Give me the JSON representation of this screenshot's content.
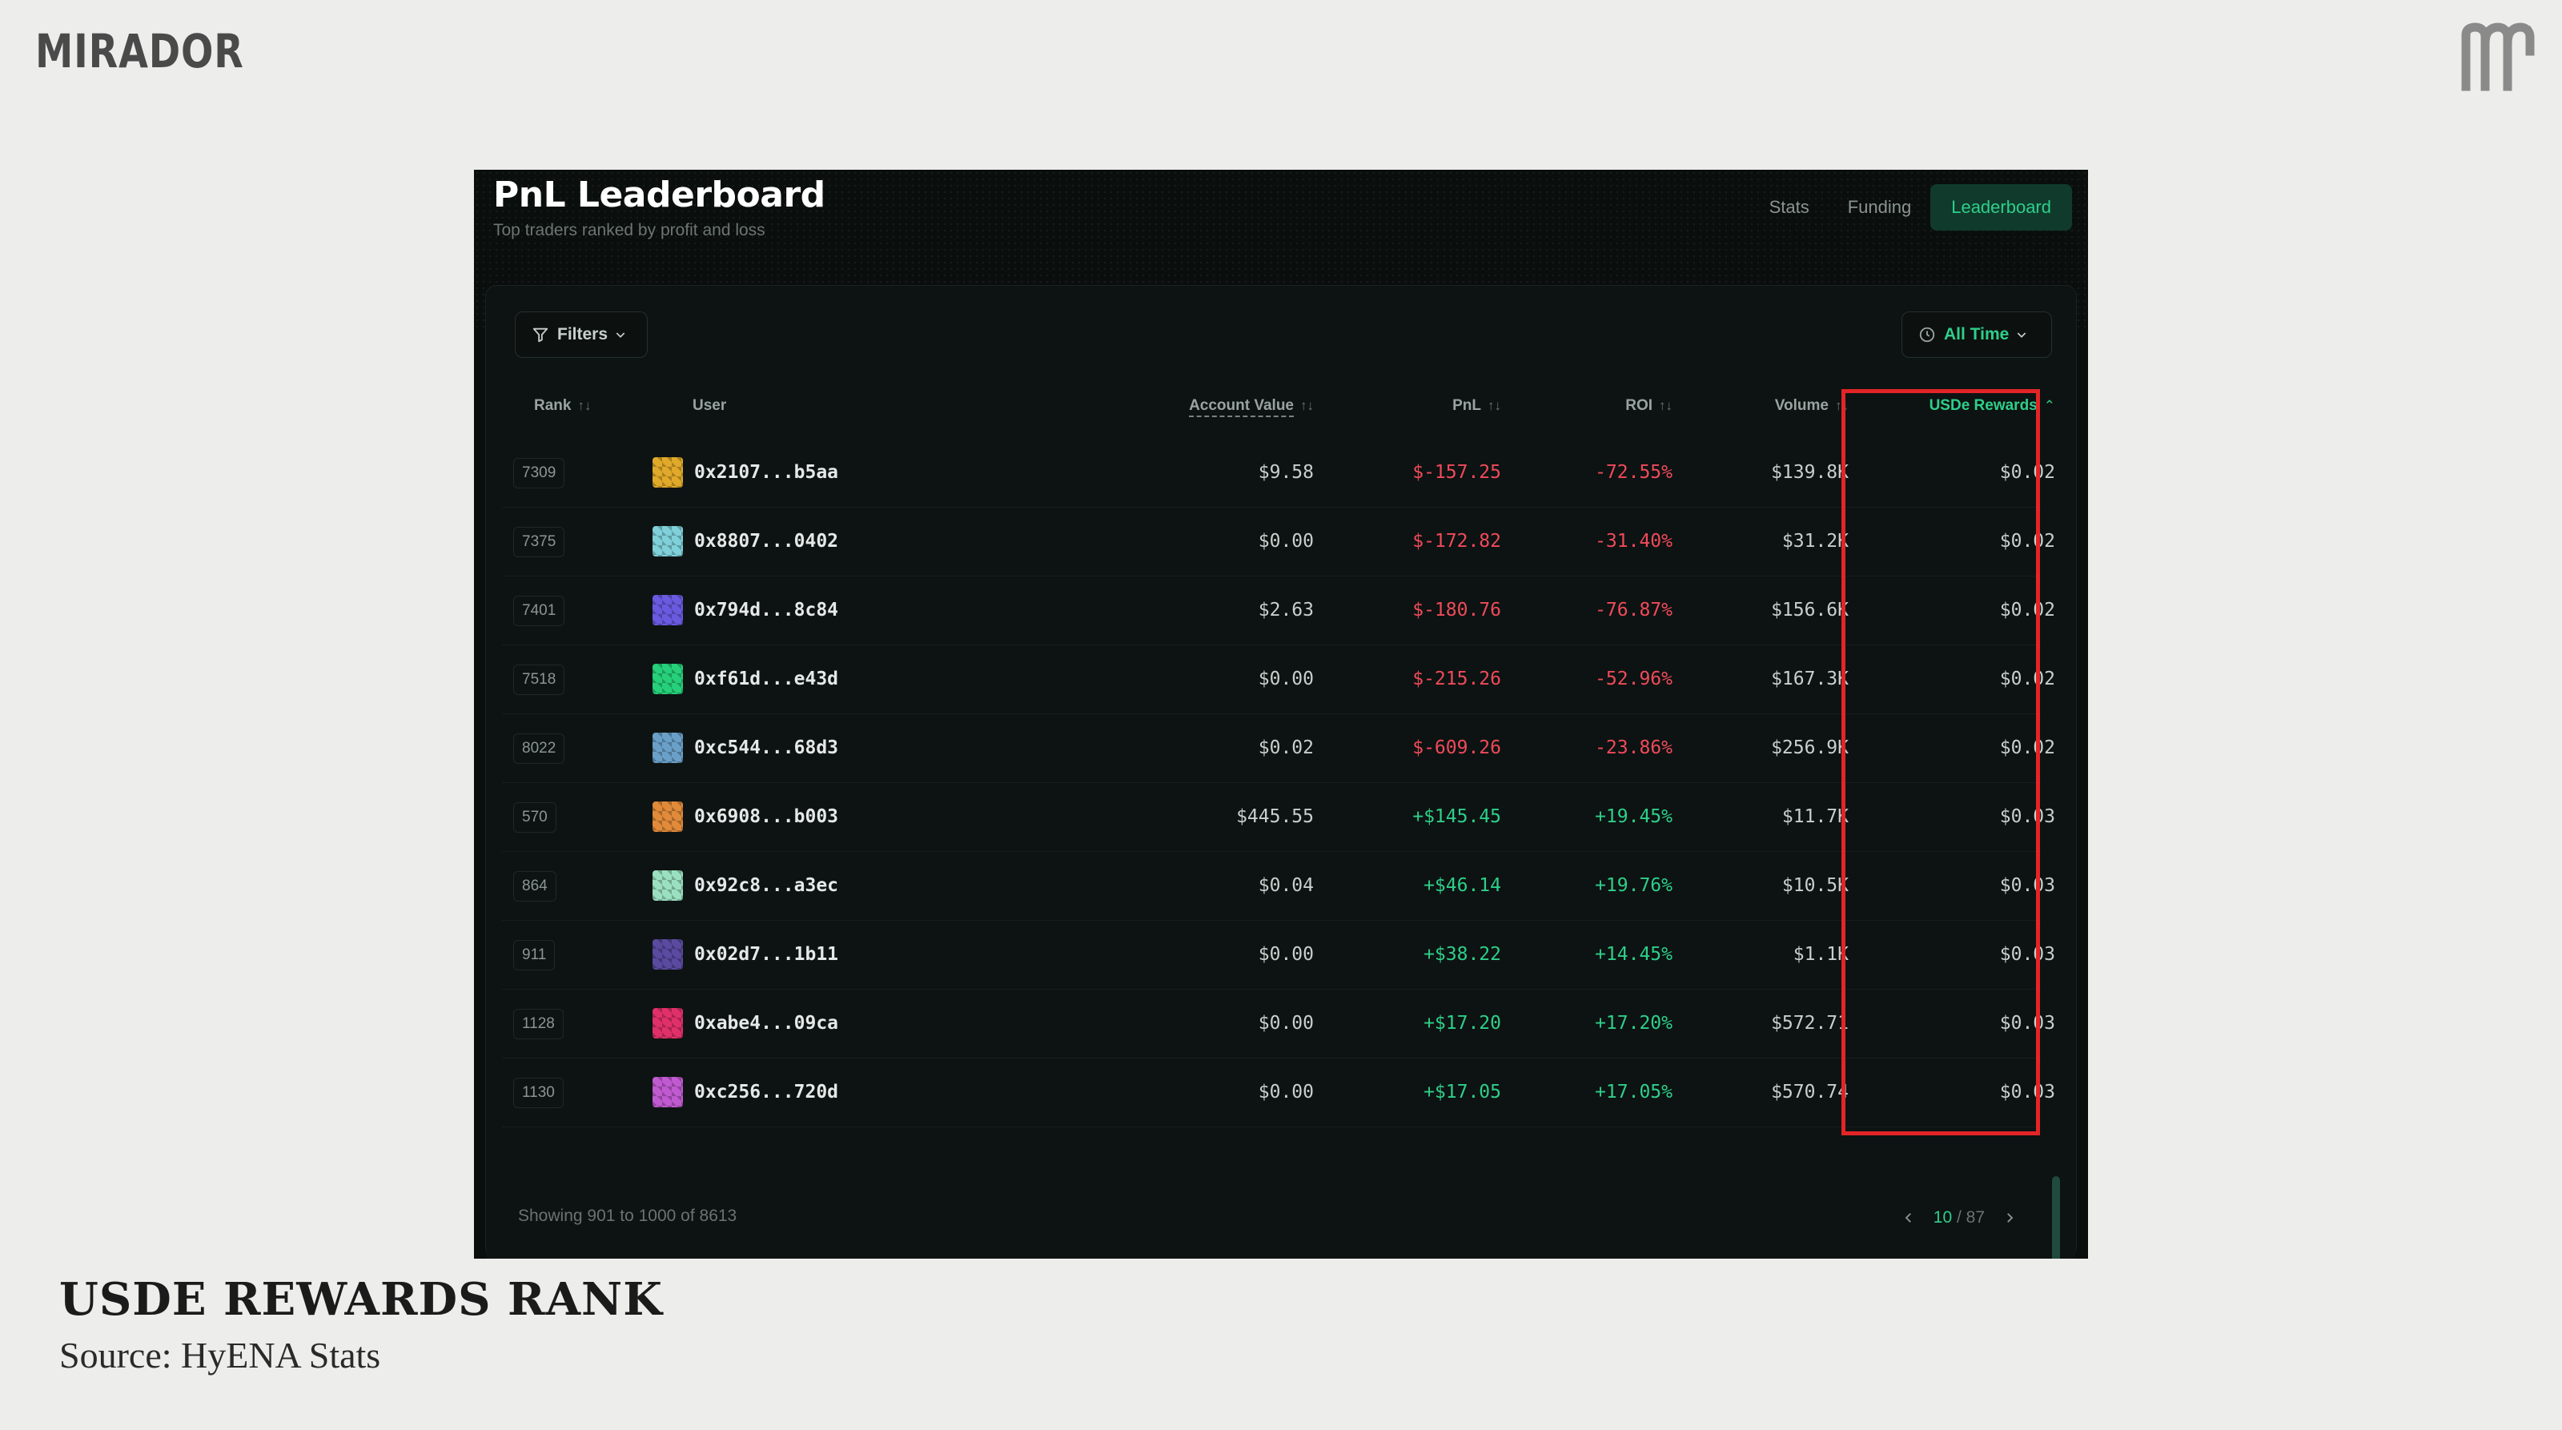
{
  "brand": {
    "logo_text": "MIRADOR",
    "mark_icon": "mirador-m-icon"
  },
  "leaderboard": {
    "title": "PnL Leaderboard",
    "subtitle": "Top traders ranked by profit and loss",
    "nav_tabs": [
      {
        "label": "Stats",
        "active": false
      },
      {
        "label": "Funding",
        "active": false
      },
      {
        "label": "Leaderboard",
        "active": true
      }
    ],
    "filters_label": "Filters",
    "time_filter_label": "All Time",
    "columns": [
      "Rank",
      "User",
      "Account Value",
      "PnL",
      "ROI",
      "Volume",
      "USDe Rewards"
    ],
    "sorted_column": "USDe Rewards",
    "rows": [
      {
        "rank": "7309",
        "user": "0x2107...b5aa",
        "account_value": "$9.58",
        "pnl": "$-157.25",
        "roi": "-72.55%",
        "volume": "$139.8K",
        "rewards": "$0.02",
        "sign": "neg",
        "avatar_color": "#e0a92a"
      },
      {
        "rank": "7375",
        "user": "0x8807...0402",
        "account_value": "$0.00",
        "pnl": "$-172.82",
        "roi": "-31.40%",
        "volume": "$31.2K",
        "rewards": "$0.02",
        "sign": "neg",
        "avatar_color": "#7fd0d8"
      },
      {
        "rank": "7401",
        "user": "0x794d...8c84",
        "account_value": "$2.63",
        "pnl": "$-180.76",
        "roi": "-76.87%",
        "volume": "$156.6K",
        "rewards": "$0.02",
        "sign": "neg",
        "avatar_color": "#6a5ae0"
      },
      {
        "rank": "7518",
        "user": "0xf61d...e43d",
        "account_value": "$0.00",
        "pnl": "$-215.26",
        "roi": "-52.96%",
        "volume": "$167.3K",
        "rewards": "$0.02",
        "sign": "neg",
        "avatar_color": "#26d07a"
      },
      {
        "rank": "8022",
        "user": "0xc544...68d3",
        "account_value": "$0.02",
        "pnl": "$-609.26",
        "roi": "-23.86%",
        "volume": "$256.9K",
        "rewards": "$0.02",
        "sign": "neg",
        "avatar_color": "#6aa0c8"
      },
      {
        "rank": "570",
        "user": "0x6908...b003",
        "account_value": "$445.55",
        "pnl": "+$145.45",
        "roi": "+19.45%",
        "volume": "$11.7K",
        "rewards": "$0.03",
        "sign": "pos",
        "avatar_color": "#e08a3a"
      },
      {
        "rank": "864",
        "user": "0x92c8...a3ec",
        "account_value": "$0.04",
        "pnl": "+$46.14",
        "roi": "+19.76%",
        "volume": "$10.5K",
        "rewards": "$0.03",
        "sign": "pos",
        "avatar_color": "#9ae0c0"
      },
      {
        "rank": "911",
        "user": "0x02d7...1b11",
        "account_value": "$0.00",
        "pnl": "+$38.22",
        "roi": "+14.45%",
        "volume": "$1.1K",
        "rewards": "$0.03",
        "sign": "pos",
        "avatar_color": "#5a4aa0"
      },
      {
        "rank": "1128",
        "user": "0xabe4...09ca",
        "account_value": "$0.00",
        "pnl": "+$17.20",
        "roi": "+17.20%",
        "volume": "$572.71",
        "rewards": "$0.03",
        "sign": "pos",
        "avatar_color": "#e0306a"
      },
      {
        "rank": "1130",
        "user": "0xc256...720d",
        "account_value": "$0.00",
        "pnl": "+$17.05",
        "roi": "+17.05%",
        "volume": "$570.74",
        "rewards": "$0.03",
        "sign": "pos",
        "avatar_color": "#c05ad0"
      }
    ],
    "footer_text": "Showing 901 to 1000 of 8613",
    "pagination": {
      "current": "10",
      "total": "87"
    }
  },
  "caption": {
    "title": "USDE REWARDS RANK",
    "source": "Source: HyENA Stats"
  },
  "colors": {
    "accent": "#2ecf8a",
    "negative": "#f04a5a",
    "highlight": "#e32528"
  }
}
